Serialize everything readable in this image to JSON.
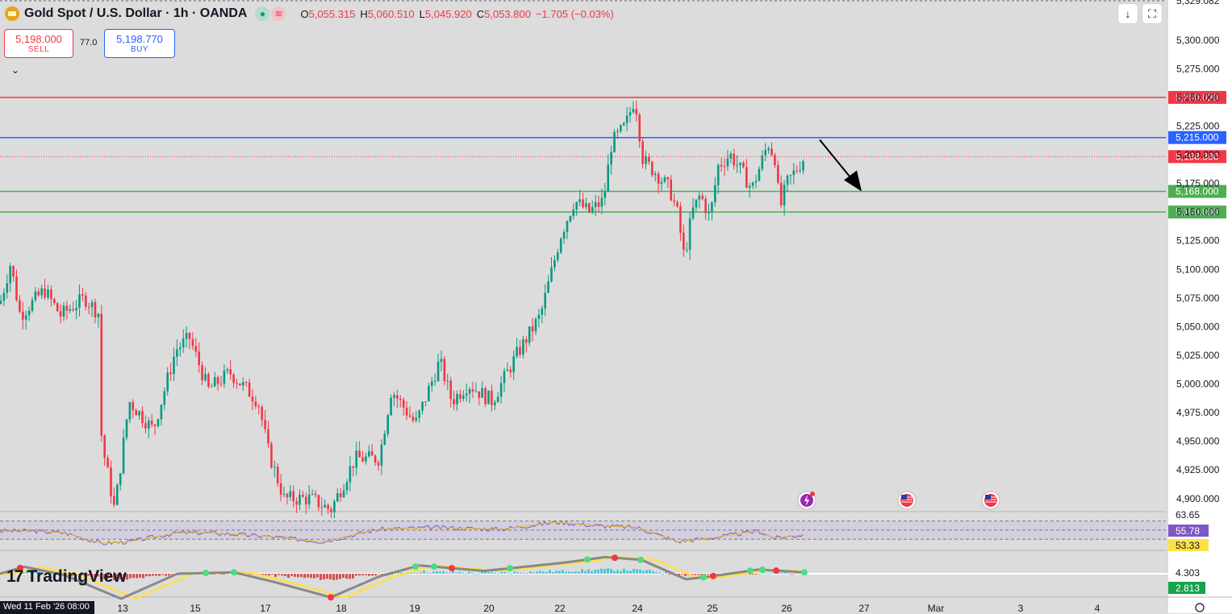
{
  "header": {
    "symbol": "Gold Spot / U.S. Dollar · 1h · OANDA",
    "icon_symbol": "gold-bars-icon",
    "indicator_buttons": [
      "circle-dot-icon",
      "wave-icon"
    ],
    "ohlc": [
      {
        "k": "O",
        "v": "5,055.315"
      },
      {
        "k": "H",
        "v": "5,060.510"
      },
      {
        "k": "L",
        "v": "5,045.920"
      },
      {
        "k": "C",
        "v": "5,053.800"
      },
      {
        "k": "",
        "v": "−1.705 (−0.03%)"
      }
    ]
  },
  "trade": {
    "sell_price": "5,198.000",
    "sell_label": "SELL",
    "spread": "77.0",
    "buy_price": "5,198.770",
    "buy_label": "BUY"
  },
  "toolbar": {
    "download_icon": "arrow-down-icon",
    "fullscreen_icon": "fullscreen-icon",
    "chevron": "⌄"
  },
  "brand": {
    "name": "TradingView",
    "mark": "17"
  },
  "crosshair_date": "Wed 11 Feb '26   08:00",
  "colors": {
    "bull": "#089981",
    "bear": "#f23645",
    "resistance": "#f23645",
    "support_blue": "#2962ff",
    "support_green": "#4caf50",
    "rsi": "#7e57c2",
    "background": "#dcdcdc"
  },
  "chart_data": {
    "type": "candlestick",
    "title": "Gold Spot / U.S. Dollar · 1h · OANDA",
    "ylim": [
      4890,
      5335
    ],
    "price_ticks": [
      "5,300.000",
      "5,275.000",
      "5,250.000",
      "5,225.000",
      "5,200.000",
      "5,175.000",
      "5,150.000",
      "5,125.000",
      "5,100.000",
      "5,075.000",
      "5,050.000",
      "5,025.000",
      "5,000.000",
      "4,975.000",
      "4,950.000",
      "4,925.000",
      "4,900.000"
    ],
    "price_tick_values": [
      5300,
      5275,
      5250,
      5225,
      5200,
      5175,
      5150,
      5125,
      5100,
      5075,
      5050,
      5025,
      5000,
      4975,
      4950,
      4925,
      4900
    ],
    "top_partial_label": "5,329.082",
    "x_ticks": [
      "13",
      "15",
      "17",
      "18",
      "19",
      "20",
      "22",
      "24",
      "25",
      "26",
      "27",
      "Mar",
      "3",
      "4"
    ],
    "levels": [
      {
        "value": 5250.02,
        "label": "5,250.020",
        "color": "#f23645",
        "style": "solid"
      },
      {
        "value": 5215.0,
        "label": "5,215.000",
        "color": "#2962ff",
        "style": "solid"
      },
      {
        "value": 5198.39,
        "label": "5,198.390",
        "color": "#f23645",
        "style": "dotted"
      },
      {
        "value": 5168.0,
        "label": "5,168.000",
        "color": "#4caf50",
        "style": "solid"
      },
      {
        "value": 5150.0,
        "label": "5,150.000",
        "color": "#4caf50",
        "style": "solid"
      }
    ],
    "path_keypoints": [
      [
        0,
        5070
      ],
      [
        13,
        5105
      ],
      [
        25,
        5060
      ],
      [
        55,
        5082
      ],
      [
        75,
        5060
      ],
      [
        105,
        5075
      ],
      [
        122,
        5062
      ],
      [
        126,
        4950
      ],
      [
        142,
        4890
      ],
      [
        160,
        4985
      ],
      [
        190,
        4960
      ],
      [
        218,
        5030
      ],
      [
        235,
        5040
      ],
      [
        258,
        4995
      ],
      [
        285,
        5010
      ],
      [
        320,
        4985
      ],
      [
        333,
        4940
      ],
      [
        352,
        4900
      ],
      [
        385,
        4900
      ],
      [
        410,
        4890
      ],
      [
        440,
        4935
      ],
      [
        470,
        4935
      ],
      [
        485,
        4995
      ],
      [
        515,
        4965
      ],
      [
        545,
        5020
      ],
      [
        560,
        4985
      ],
      [
        580,
        5000
      ],
      [
        610,
        4985
      ],
      [
        640,
        5025
      ],
      [
        670,
        5060
      ],
      [
        695,
        5130
      ],
      [
        712,
        5160
      ],
      [
        730,
        5150
      ],
      [
        748,
        5160
      ],
      [
        758,
        5210
      ],
      [
        775,
        5225
      ],
      [
        787,
        5250
      ],
      [
        797,
        5195
      ],
      [
        812,
        5185
      ],
      [
        830,
        5170
      ],
      [
        840,
        5148
      ],
      [
        848,
        5110
      ],
      [
        858,
        5150
      ],
      [
        868,
        5165
      ],
      [
        880,
        5145
      ],
      [
        890,
        5190
      ],
      [
        905,
        5200
      ],
      [
        915,
        5190
      ],
      [
        932,
        5170
      ],
      [
        952,
        5210
      ],
      [
        962,
        5195
      ],
      [
        966,
        5150
      ],
      [
        975,
        5175
      ],
      [
        990,
        5190
      ],
      [
        997,
        5198
      ]
    ],
    "arrow": {
      "from_date_x": 1016,
      "from_value": 5213,
      "to_date_x": 1068,
      "to_value": 5168,
      "color": "#000000"
    },
    "events": [
      "lightning-event-icon",
      "us-flag-event-icon",
      "us-flag-event-icon"
    ],
    "rsi": {
      "labels": {
        "upper": "63.65",
        "value": "55.78",
        "lower": "53.33"
      },
      "range": [
        48,
        68
      ],
      "upper": 63.65,
      "lower": 53.33,
      "mid": 58.5,
      "keypoints": [
        [
          0,
          58
        ],
        [
          40,
          58
        ],
        [
          80,
          57
        ],
        [
          126,
          51
        ],
        [
          160,
          52
        ],
        [
          220,
          57
        ],
        [
          260,
          57
        ],
        [
          330,
          55
        ],
        [
          400,
          52
        ],
        [
          470,
          59
        ],
        [
          540,
          60
        ],
        [
          620,
          59
        ],
        [
          690,
          63
        ],
        [
          740,
          61
        ],
        [
          790,
          60
        ],
        [
          840,
          52
        ],
        [
          880,
          54
        ],
        [
          940,
          58
        ],
        [
          960,
          54
        ],
        [
          997,
          56
        ]
      ]
    },
    "oscillator": {
      "labels": {
        "upper": "4.303",
        "value": "2.813"
      },
      "range": [
        -25,
        15
      ],
      "keypoints": [
        [
          0,
          0
        ],
        [
          30,
          5
        ],
        [
          80,
          -1
        ],
        [
          150,
          -18
        ],
        [
          220,
          0
        ],
        [
          290,
          1
        ],
        [
          340,
          -6
        ],
        [
          410,
          -17
        ],
        [
          470,
          -2
        ],
        [
          520,
          6
        ],
        [
          600,
          2
        ],
        [
          700,
          8
        ],
        [
          750,
          12
        ],
        [
          795,
          10
        ],
        [
          850,
          -4
        ],
        [
          880,
          -2
        ],
        [
          940,
          3
        ],
        [
          997,
          1
        ]
      ]
    }
  }
}
